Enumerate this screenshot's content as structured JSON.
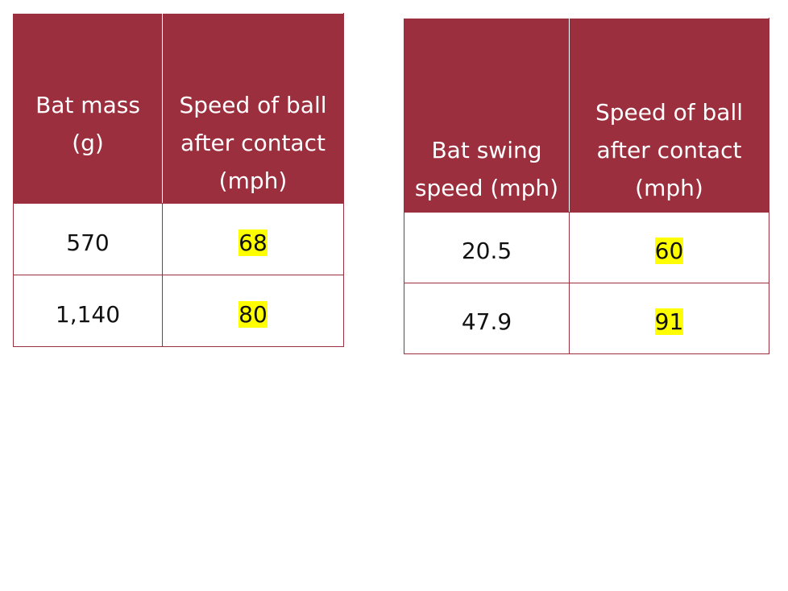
{
  "tables": [
    {
      "header": [
        "Bat mass (g)",
        "Speed of ball after contact (mph)"
      ],
      "rows": [
        [
          "570",
          "68"
        ],
        [
          "1,140",
          "80"
        ]
      ]
    },
    {
      "header": [
        "Bat swing speed (mph)",
        "Speed of ball after contact (mph)"
      ],
      "rows": [
        [
          "20.5",
          "60"
        ],
        [
          "47.9",
          "91"
        ]
      ]
    }
  ]
}
